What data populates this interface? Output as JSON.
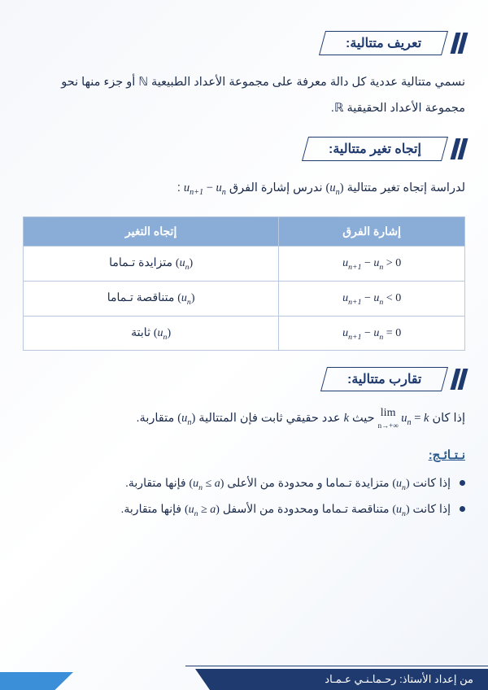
{
  "sections": {
    "def": {
      "title": "تعريف متتالية:"
    },
    "dir": {
      "title": "إتجاه تغير متتالية:"
    },
    "conv": {
      "title": "تقارب متتالية:"
    }
  },
  "def_text_1": "نسمي متتالية عددية كل دالة معرفة على مجموعة الأعداد الطبيعية ",
  "def_text_2": " أو جزء منها نحو",
  "def_text_3": "مجموعة الأعداد الحقيقية ",
  "nat_sym": "ℕ",
  "real_sym": "ℝ",
  "dir_intro_1": "لدراسة إتجاه تغير متتالية ",
  "dir_intro_2": " ندرس إشارة الفرق ",
  "table": {
    "h1": "إشارة الفرق",
    "h2": "إتجاه التغير",
    "r1c1": "u_{n+1} − u_n > 0",
    "r1c2_text": " متزايدة تـماما",
    "r2c1": "u_{n+1} − u_n < 0",
    "r2c2_text": " متناقصة تـماما",
    "r3c1": "u_{n+1} − u_n = 0",
    "r3c2_text": " ثابتة"
  },
  "conv_text_1": "إذا كان ",
  "conv_text_2": " حيث ",
  "conv_text_3": " عدد حقيقي ثابت فإن المتتالية ",
  "conv_text_4": " متقاربة.",
  "k_sym": "k",
  "results_title": "نـتـائـج:",
  "res1_a": "إذا كانت ",
  "res1_b": " متزايدة تـماما و محدودة من الأعلى ",
  "res1_c": " فإنها متقاربة.",
  "res2_a": "إذا كانت ",
  "res2_b": " متناقصة تـماما ومحدودة من الأسفل ",
  "res2_c": " فإنها متقاربة.",
  "footer": "من إعداد الأستاذ: رحـماـنـي عـمـاد",
  "colors": {
    "primary": "#1e3a6e",
    "table_header": "#8aadd8",
    "accent": "#3b8fd8"
  }
}
